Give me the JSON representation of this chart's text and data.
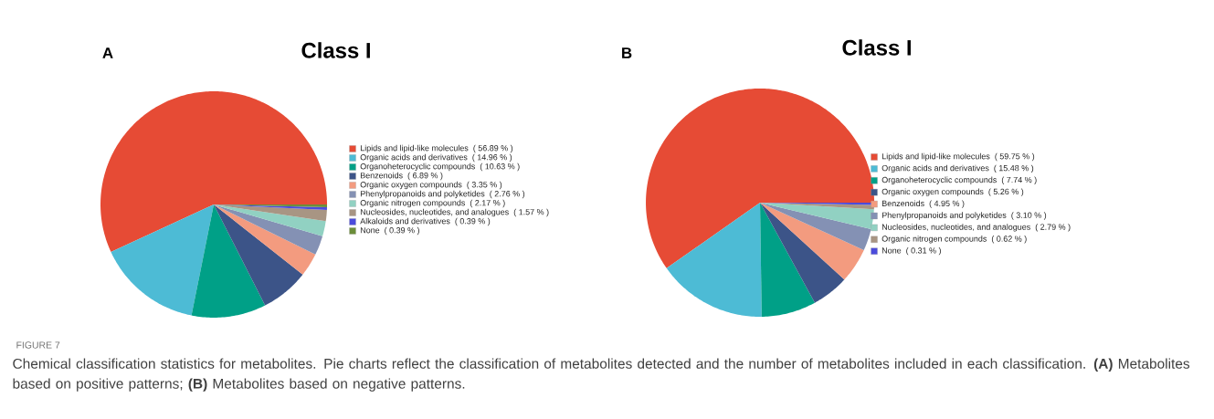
{
  "chart_data": [
    {
      "type": "pie",
      "title": "Class I",
      "categories": [
        "Lipids and lipid-like molecules",
        "Organic acids and derivatives",
        "Organoheterocyclic compounds",
        "Benzenoids",
        "Organic oxygen compounds",
        "Phenylpropanoids and polyketides",
        "Organic nitrogen compounds",
        "Nucleosides, nucleotides, and analogues",
        "Alkaloids and derivatives",
        "None"
      ],
      "values": [
        56.89,
        14.96,
        10.63,
        6.89,
        3.35,
        2.76,
        2.17,
        1.57,
        0.39,
        0.39
      ],
      "value_labels": [
        "( 56.89 % )",
        "( 14.96 % )",
        "( 10.63 % )",
        "( 6.89 % )",
        "( 3.35 % )",
        "( 2.76 % )",
        "( 2.17 % )",
        "( 1.57 % )",
        "( 0.39 % )",
        "( 0.39 % )"
      ],
      "colors": [
        "#e64b35",
        "#4dbbd5",
        "#00a087",
        "#3c5488",
        "#f39b7f",
        "#8491b4",
        "#91d1c2",
        "#a89583",
        "#4b4bdc",
        "#6b8e3a"
      ],
      "legend": "right",
      "annotations": [
        "A",
        "FIGURE 7",
        "Chemical classification statistics for metabolites. Pie charts reflect the classification of metabolites detected and the number of metabolites included in each classification. **(A)** Metabolites based on positive patterns; **(B)** Metabolites based on negative patterns."
      ]
    },
    {
      "type": "pie",
      "title": "Class I",
      "categories": [
        "Lipids and lipid-like molecules",
        "Organic acids and derivatives",
        "Organoheterocyclic compounds",
        "Organic oxygen compounds",
        "Benzenoids",
        "Phenylpropanoids and polyketides",
        "Nucleosides, nucleotides, and analogues",
        "Organic nitrogen compounds",
        "None"
      ],
      "values": [
        59.75,
        15.48,
        7.74,
        5.26,
        4.95,
        3.1,
        2.79,
        0.62,
        0.31
      ],
      "value_labels": [
        "( 59.75 % )",
        "( 15.48 % )",
        "( 7.74 % )",
        "( 5.26 % )",
        "( 4.95 % )",
        "( 3.10 % )",
        "( 2.79 % )",
        "( 0.62 % )",
        "( 0.31 % )"
      ],
      "colors": [
        "#e64b35",
        "#4dbbd5",
        "#00a087",
        "#3c5488",
        "#f39b7f",
        "#8491b4",
        "#91d1c2",
        "#a89583",
        "#4b4bdc"
      ],
      "legend": "right",
      "annotations": [
        "B"
      ]
    }
  ]
}
